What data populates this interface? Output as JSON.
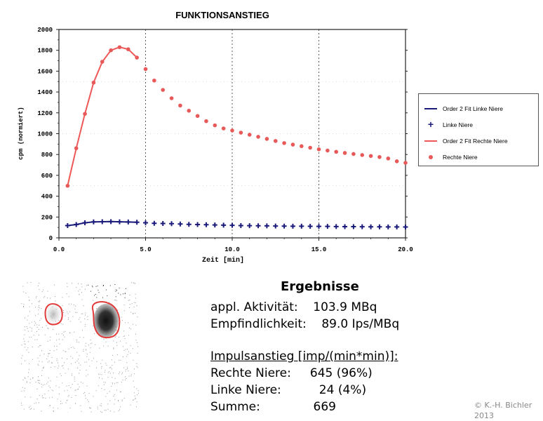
{
  "chart_data": {
    "type": "line",
    "title": "FUNKTIONSANSTIEG",
    "xlabel": "Zeit [min]",
    "ylabel": "cpm (normiert)",
    "xlim": [
      0,
      20
    ],
    "ylim": [
      0,
      2000
    ],
    "x_ticks": [
      "0.0",
      "5.0",
      "10.0",
      "15.0",
      "20.0"
    ],
    "y_ticks": [
      "0",
      "200",
      "400",
      "600",
      "800",
      "1000",
      "1200",
      "1400",
      "1600",
      "1800",
      "2000"
    ],
    "grid": true,
    "legend_position": "right",
    "series": [
      {
        "name": "Order 2 Fit Linke Niere",
        "style": "line",
        "color": "#1a1a7a",
        "x": [
          0.5,
          1.0,
          1.5,
          2.0,
          2.5,
          3.0,
          3.5,
          4.0,
          4.5
        ],
        "y": [
          118,
          128,
          145,
          153,
          155,
          156,
          154,
          152,
          150
        ]
      },
      {
        "name": "Linke Niere",
        "style": "plus",
        "color": "#1a1a7a",
        "x": [
          0.5,
          1.0,
          1.5,
          2.0,
          2.5,
          3.0,
          3.5,
          4.0,
          4.5,
          5.0,
          5.5,
          6.0,
          6.5,
          7.0,
          7.5,
          8.0,
          8.5,
          9.0,
          9.5,
          10.0,
          10.5,
          11.0,
          11.5,
          12.0,
          12.5,
          13.0,
          13.5,
          14.0,
          14.5,
          15.0,
          15.5,
          16.0,
          16.5,
          17.0,
          17.5,
          18.0,
          18.5,
          19.0,
          19.5,
          20.0
        ],
        "y": [
          118,
          128,
          145,
          153,
          155,
          156,
          154,
          152,
          150,
          145,
          140,
          138,
          136,
          133,
          130,
          128,
          126,
          124,
          122,
          120,
          118,
          117,
          116,
          115,
          114,
          113,
          112,
          112,
          111,
          110,
          110,
          109,
          108,
          108,
          107,
          106,
          106,
          105,
          105,
          104
        ]
      },
      {
        "name": "Order 2 Fit Rechte Niere",
        "style": "line",
        "color": "#f05858",
        "x": [
          0.5,
          1.0,
          1.5,
          2.0,
          2.5,
          3.0,
          3.5,
          4.0,
          4.5
        ],
        "y": [
          500,
          860,
          1190,
          1490,
          1690,
          1800,
          1830,
          1810,
          1730
        ]
      },
      {
        "name": "Rechte Niere",
        "style": "dot",
        "color": "#e85a5a",
        "x": [
          0.5,
          1.0,
          1.5,
          2.0,
          2.5,
          3.0,
          3.5,
          4.0,
          4.5,
          5.0,
          5.5,
          6.0,
          6.5,
          7.0,
          7.5,
          8.0,
          8.5,
          9.0,
          9.5,
          10.0,
          10.5,
          11.0,
          11.5,
          12.0,
          12.5,
          13.0,
          13.5,
          14.0,
          14.5,
          15.0,
          15.5,
          16.0,
          16.5,
          17.0,
          17.5,
          18.0,
          18.5,
          19.0,
          19.5,
          20.0
        ],
        "y": [
          500,
          860,
          1190,
          1490,
          1690,
          1800,
          1830,
          1810,
          1730,
          1620,
          1510,
          1420,
          1340,
          1270,
          1220,
          1170,
          1120,
          1080,
          1050,
          1030,
          1010,
          990,
          970,
          950,
          930,
          910,
          895,
          880,
          865,
          850,
          838,
          826,
          815,
          805,
          795,
          786,
          776,
          762,
          735,
          720
        ]
      }
    ]
  },
  "results": {
    "title": "Ergebnisse",
    "line1": "appl. Aktivität:    103.9 MBq",
    "line2": "Empfindlichkeit:    89.0 Ips/MBq",
    "header": "Impulsanstieg [imp/(min*min)]:",
    "line3": "Rechte Niere:     645 (96%)",
    "line4": "Linke Niere:          24 (4%)",
    "line5": "Summe:              669"
  },
  "copyright": {
    "line1": "© K.-H. Bichler",
    "line2": "2013"
  },
  "legend_symbols": {
    "plus": "+"
  }
}
